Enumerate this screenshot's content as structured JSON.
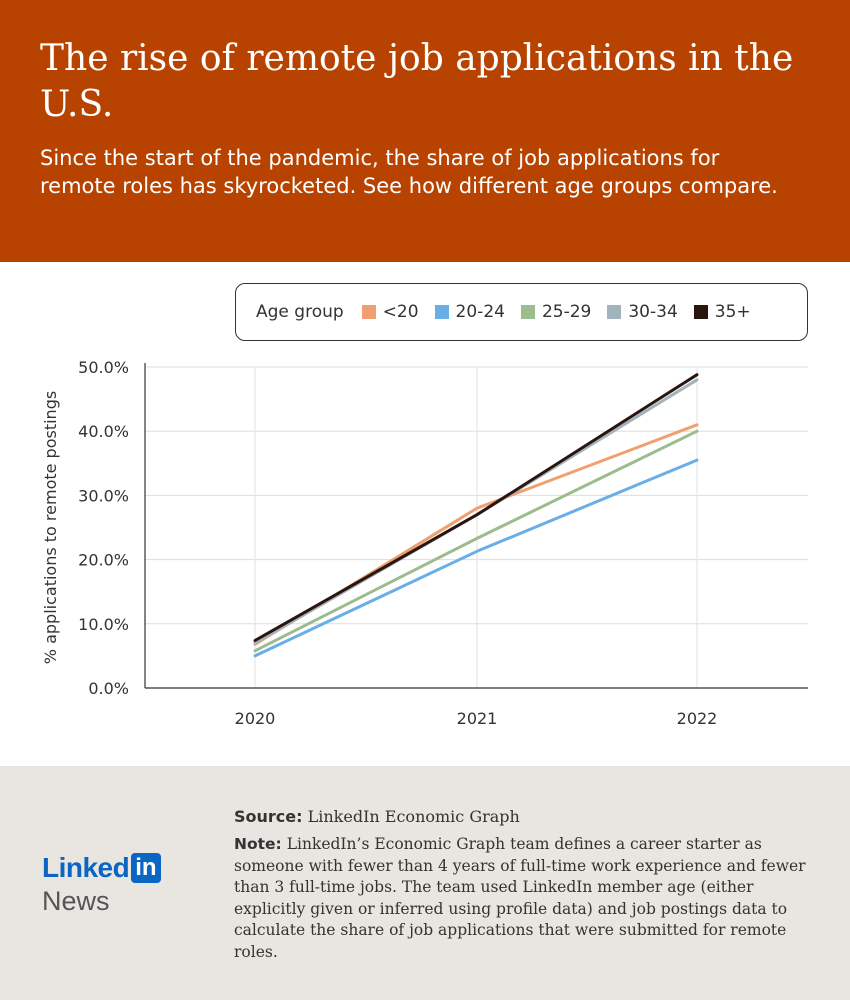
{
  "header": {
    "title": "The rise of remote job applications in the U.S.",
    "subtitle": "Since the start of the pandemic, the share of job applications for remote roles has skyrocketed. See how different age groups compare."
  },
  "legend": {
    "title": "Age group"
  },
  "chart_data": {
    "type": "line",
    "title": "The rise of remote job applications in the U.S.",
    "xlabel": "",
    "ylabel": "% applications to remote postings",
    "categories": [
      "2020",
      "2021",
      "2022"
    ],
    "ylim": [
      0,
      50
    ],
    "yticks": [
      "0.0%",
      "10.0%",
      "20.0%",
      "30.0%",
      "40.0%",
      "50.0%"
    ],
    "grid": true,
    "series": [
      {
        "name": "<20",
        "color": "#f0a070",
        "values": [
          6.8,
          28.0,
          41.0
        ]
      },
      {
        "name": "20-24",
        "color": "#6aaee8",
        "values": [
          5.0,
          21.3,
          35.5
        ]
      },
      {
        "name": "25-29",
        "color": "#9cbc8e",
        "values": [
          5.8,
          23.3,
          40.0
        ]
      },
      {
        "name": "30-34",
        "color": "#a3b3bc",
        "values": [
          7.0,
          27.0,
          48.0
        ]
      },
      {
        "name": "35+",
        "color": "#2a160e",
        "values": [
          7.4,
          27.0,
          48.8
        ]
      }
    ]
  },
  "footer": {
    "source_label": "Source:",
    "source_text": "LinkedIn Economic Graph",
    "note_label": "Note:",
    "note_text": "LinkedIn’s Economic Graph team defines a career starter as someone with fewer than 4 years of full-time work experience and fewer than 3 full-time jobs. The team used LinkedIn member age (either explicitly given or inferred using profile data) and job postings data to calculate the share of job applications that were submitted for remote roles.",
    "logo_brand": "Linked",
    "logo_in": "in",
    "logo_news": "News"
  }
}
